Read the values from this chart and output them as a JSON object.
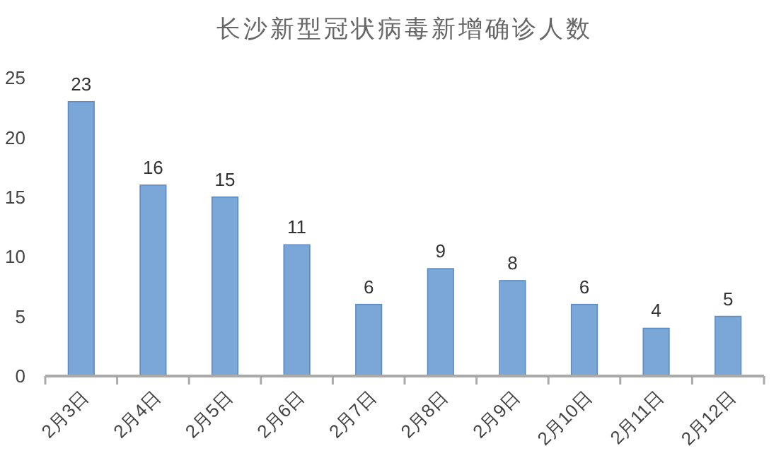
{
  "chart_data": {
    "type": "bar",
    "title": "长沙新型冠状病毒新增确诊人数",
    "categories": [
      "2月3日",
      "2月4日",
      "2月5日",
      "2月6日",
      "2月7日",
      "2月8日",
      "2月9日",
      "2月10日",
      "2月11日",
      "2月12日"
    ],
    "values": [
      23,
      16,
      15,
      11,
      6,
      9,
      8,
      6,
      4,
      5
    ],
    "color": "#7aa7d8",
    "ylim": [
      0,
      25
    ],
    "yticks": [
      0,
      5,
      10,
      15,
      20,
      25
    ],
    "data_labels": true
  }
}
